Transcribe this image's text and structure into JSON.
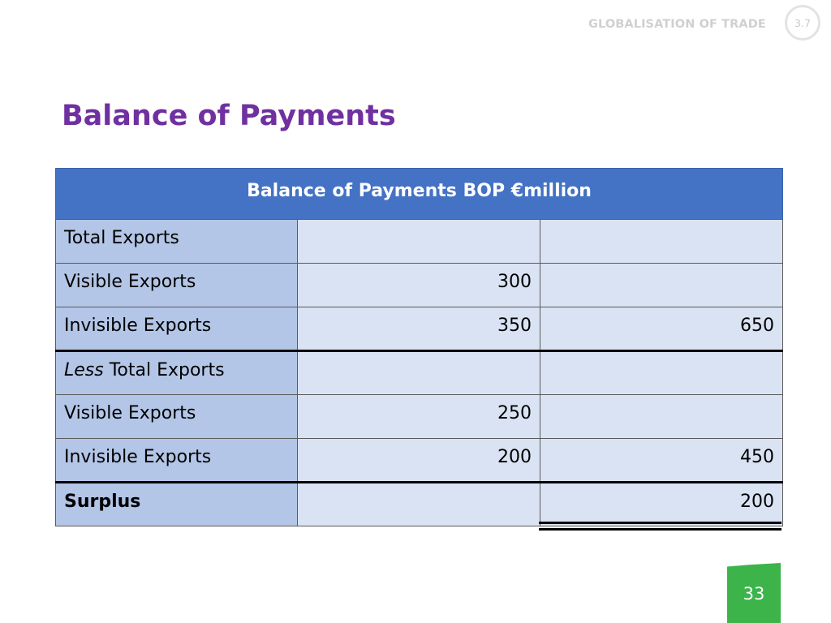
{
  "header": {
    "topic": "GLOBALISATION OF TRADE",
    "section_number": "3.7"
  },
  "slide": {
    "title": "Balance of Payments",
    "page_number": "33"
  },
  "table": {
    "heading": "Balance of Payments BOP €million",
    "rows": [
      {
        "label": "Total Exports",
        "label_prefix": "",
        "col1": "",
        "col2": ""
      },
      {
        "label": "Visible Exports",
        "label_prefix": "",
        "col1": "300",
        "col2": ""
      },
      {
        "label": "Invisible Exports",
        "label_prefix": "",
        "col1": "350",
        "col2": "650"
      },
      {
        "label": " Total Exports",
        "label_prefix": "Less",
        "col1": "",
        "col2": ""
      },
      {
        "label": "Visible Exports",
        "label_prefix": "",
        "col1": "250",
        "col2": ""
      },
      {
        "label": "Invisible Exports",
        "label_prefix": "",
        "col1": "200",
        "col2": "450"
      },
      {
        "label": "Surplus",
        "label_prefix": "",
        "col1": "",
        "col2": "200"
      }
    ]
  },
  "colors": {
    "title": "#7030a0",
    "table_header": "#4472c4",
    "label_cell": "#b4c6e7",
    "value_cell": "#dae3f3",
    "page_badge": "#3cb44a"
  }
}
